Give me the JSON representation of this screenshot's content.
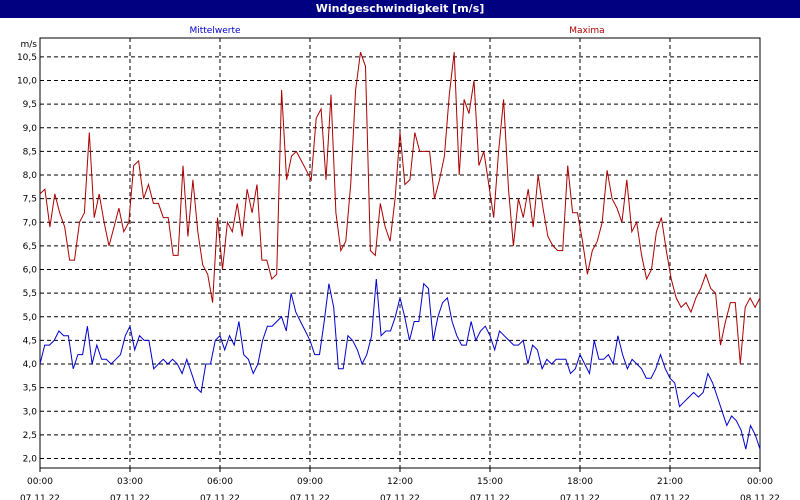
{
  "window": {
    "title": "Windgeschwindigkeit [m/s]"
  },
  "chart_data": {
    "type": "line",
    "title": "Windgeschwindigkeit [m/s]",
    "ylabel": "m/s",
    "ylim": [
      1.8,
      10.9
    ],
    "xlim": [
      0,
      24
    ],
    "grid": true,
    "y_ticks": [
      "2,0",
      "2,5",
      "3,0",
      "3,5",
      "4,0",
      "4,5",
      "5,0",
      "5,5",
      "6,0",
      "6,5",
      "7,0",
      "7,5",
      "8,0",
      "8,5",
      "9,0",
      "9,5",
      "10,0",
      "10,5"
    ],
    "x_ticks": [
      {
        "time": "00:00",
        "date": "07.11.22"
      },
      {
        "time": "03:00",
        "date": "07.11.22"
      },
      {
        "time": "06:00",
        "date": "07.11.22"
      },
      {
        "time": "09:00",
        "date": "07.11.22"
      },
      {
        "time": "12:00",
        "date": "07.11.22"
      },
      {
        "time": "15:00",
        "date": "07.11.22"
      },
      {
        "time": "18:00",
        "date": "07.11.22"
      },
      {
        "time": "21:00",
        "date": "07.11.22"
      },
      {
        "time": "00:00",
        "date": "08.11.22"
      }
    ],
    "series": [
      {
        "name": "Mittelwerte",
        "color": "#0000cc",
        "values": [
          4.0,
          4.4,
          4.4,
          4.5,
          4.7,
          4.6,
          4.6,
          3.9,
          4.2,
          4.2,
          4.8,
          4.0,
          4.4,
          4.1,
          4.1,
          4.0,
          4.1,
          4.2,
          4.6,
          4.8,
          4.3,
          4.6,
          4.5,
          4.5,
          3.9,
          4.0,
          4.1,
          4.0,
          4.1,
          4.0,
          3.8,
          4.1,
          3.8,
          3.5,
          3.4,
          4.0,
          4.0,
          4.5,
          4.6,
          4.3,
          4.6,
          4.4,
          4.9,
          4.2,
          4.1,
          3.8,
          4.0,
          4.5,
          4.8,
          4.8,
          4.9,
          5.0,
          4.7,
          5.5,
          5.1,
          4.9,
          4.7,
          4.5,
          4.2,
          4.2,
          4.9,
          5.7,
          5.2,
          3.9,
          3.9,
          4.6,
          4.5,
          4.3,
          4.0,
          4.2,
          4.6,
          5.8,
          4.6,
          4.7,
          4.7,
          5.0,
          5.4,
          5.0,
          4.5,
          4.9,
          4.9,
          5.7,
          5.6,
          4.5,
          5.0,
          5.3,
          5.4,
          4.9,
          4.6,
          4.4,
          4.4,
          4.9,
          4.5,
          4.7,
          4.8,
          4.6,
          4.3,
          4.7,
          4.6,
          4.5,
          4.4,
          4.4,
          4.5,
          4.0,
          4.4,
          4.3,
          3.9,
          4.1,
          4.0,
          4.1,
          4.1,
          4.1,
          3.8,
          3.9,
          4.2,
          4.0,
          3.8,
          4.5,
          4.1,
          4.1,
          4.2,
          4.0,
          4.6,
          4.2,
          3.9,
          4.1,
          4.0,
          3.9,
          3.7,
          3.7,
          3.9,
          4.2,
          3.9,
          3.7,
          3.6,
          3.1,
          3.2,
          3.3,
          3.4,
          3.3,
          3.4,
          3.8,
          3.6,
          3.3,
          3.0,
          2.7,
          2.9,
          2.8,
          2.6,
          2.2,
          2.7,
          2.5,
          2.2
        ]
      },
      {
        "name": "Maxima",
        "color": "#aa0000",
        "values": [
          7.6,
          7.7,
          6.9,
          7.6,
          7.2,
          6.9,
          6.2,
          6.2,
          7.0,
          7.2,
          8.9,
          7.1,
          7.6,
          7.0,
          6.5,
          6.9,
          7.3,
          6.8,
          7.0,
          8.2,
          8.3,
          7.5,
          7.8,
          7.4,
          7.4,
          7.1,
          7.1,
          6.3,
          6.3,
          8.2,
          6.7,
          7.9,
          6.8,
          6.1,
          5.9,
          5.3,
          7.1,
          6.0,
          7.0,
          6.8,
          7.4,
          6.7,
          7.7,
          7.2,
          7.8,
          6.2,
          6.2,
          5.8,
          5.9,
          9.8,
          7.9,
          8.4,
          8.5,
          8.3,
          8.1,
          7.9,
          9.2,
          9.4,
          7.9,
          9.7,
          7.2,
          6.4,
          6.6,
          7.8,
          9.8,
          10.6,
          10.3,
          6.4,
          6.3,
          7.4,
          6.9,
          6.6,
          7.5,
          8.9,
          7.8,
          7.9,
          8.9,
          8.5,
          8.5,
          8.5,
          7.5,
          7.9,
          8.4,
          9.7,
          10.6,
          8.0,
          9.6,
          9.3,
          10.0,
          8.2,
          8.5,
          7.8,
          7.1,
          8.5,
          9.6,
          7.7,
          6.5,
          7.5,
          7.1,
          7.7,
          6.9,
          8.0,
          7.3,
          6.7,
          6.5,
          6.4,
          6.4,
          8.2,
          7.2,
          7.2,
          6.6,
          5.9,
          6.4,
          6.6,
          7.0,
          8.1,
          7.5,
          7.3,
          7.0,
          7.9,
          6.8,
          7.0,
          6.3,
          5.8,
          6.0,
          6.8,
          7.1,
          6.4,
          5.8,
          5.4,
          5.2,
          5.3,
          5.1,
          5.4,
          5.6,
          5.9,
          5.6,
          5.5,
          4.4,
          4.9,
          5.3,
          5.3,
          4.0,
          5.2,
          5.4,
          5.2,
          5.4
        ]
      }
    ]
  }
}
